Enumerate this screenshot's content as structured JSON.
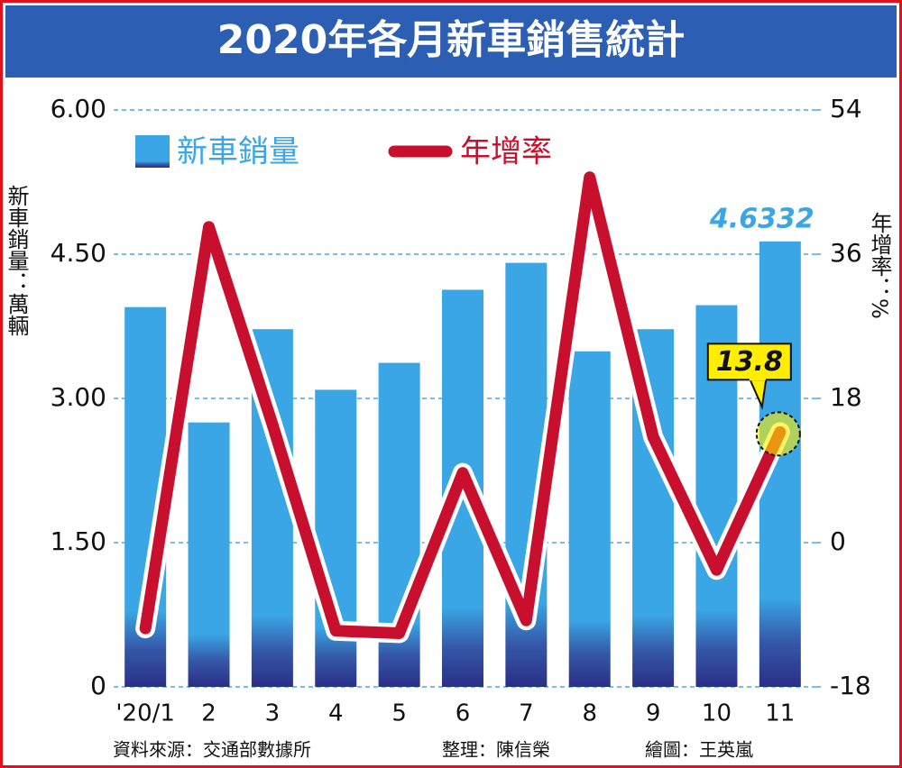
{
  "chart_data": {
    "type": "combo",
    "title": "2020年各月新車銷售統計",
    "categories": [
      "'20/1",
      "2",
      "3",
      "4",
      "5",
      "6",
      "7",
      "8",
      "9",
      "10",
      "11"
    ],
    "series": [
      {
        "name": "新車銷量",
        "type": "bar",
        "color": "#3aa6e6",
        "values": [
          3.95,
          2.75,
          3.72,
          3.09,
          3.37,
          4.13,
          4.41,
          3.49,
          3.72,
          3.97,
          4.6332
        ]
      },
      {
        "name": "年增率",
        "type": "line",
        "axis": "y2",
        "color": "#c8102e",
        "values": [
          -10.7,
          39.4,
          14.8,
          -11.0,
          -11.3,
          8.7,
          -9.7,
          45.6,
          13.2,
          -3.4,
          13.8
        ]
      }
    ],
    "ylabel": "新車銷量：萬輛",
    "y2label": "年增率：%",
    "ylim": [
      0,
      6
    ],
    "yticks": [
      0,
      {
        "value": 1.5,
        "label": "1.50"
      },
      {
        "value": 3,
        "label": "3.00"
      },
      {
        "value": 4.5,
        "label": "4.50"
      },
      {
        "value": 6,
        "label": "6.00"
      }
    ],
    "y2lim": [
      -18,
      54
    ],
    "y2ticks": [
      -18,
      0,
      18,
      36,
      54
    ],
    "grid": true,
    "source": "資料來源：交通部數據所",
    "editor": "整理：陳信榮",
    "illustrator": "繪圖：王英嵐"
  }
}
